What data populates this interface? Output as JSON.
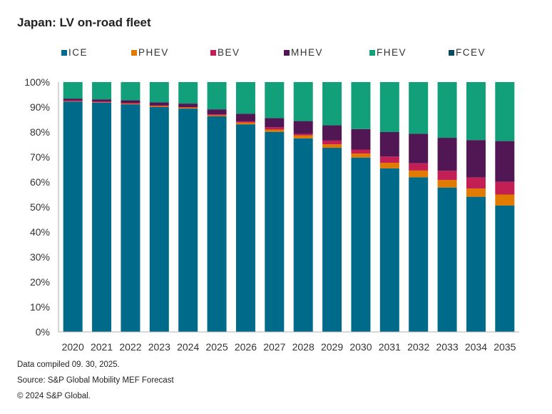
{
  "title": "Japan: LV on-road fleet",
  "footer": {
    "compiled": "Data compiled 09. 30, 2025.",
    "source": "Source: S&P Global Mobility MEF Forecast",
    "copyright": "© 2024 S&P Global."
  },
  "chart_data": {
    "type": "bar",
    "stacked": true,
    "title": "Japan: LV on-road fleet",
    "xlabel": "",
    "ylabel": "",
    "ylim": [
      0,
      100
    ],
    "y_ticks": [
      "0%",
      "10%",
      "20%",
      "30%",
      "40%",
      "50%",
      "60%",
      "70%",
      "80%",
      "90%",
      "100%"
    ],
    "grid": false,
    "legend_position": "top",
    "categories": [
      "2020",
      "2021",
      "2022",
      "2023",
      "2024",
      "2025",
      "2026",
      "2027",
      "2028",
      "2029",
      "2030",
      "2031",
      "2032",
      "2033",
      "2034",
      "2035"
    ],
    "series": [
      {
        "name": "ICE",
        "color": "#006a8a",
        "values": [
          92.2,
          91.8,
          91.1,
          90.0,
          89.4,
          86.3,
          83.1,
          80.1,
          77.5,
          73.7,
          69.8,
          65.5,
          61.9,
          57.8,
          54.1,
          50.6
        ]
      },
      {
        "name": "PHEV",
        "color": "#e07b00",
        "values": [
          0.1,
          0.1,
          0.2,
          0.4,
          0.4,
          0.4,
          0.7,
          0.9,
          1.2,
          1.4,
          1.6,
          2.2,
          2.7,
          3.0,
          3.3,
          4.4
        ]
      },
      {
        "name": "BEV",
        "color": "#c41f54",
        "values": [
          0.4,
          0.4,
          0.4,
          0.2,
          0.2,
          0.4,
          0.5,
          0.9,
          0.6,
          1.5,
          1.6,
          2.5,
          2.9,
          3.7,
          4.4,
          5.1
        ]
      },
      {
        "name": "MHEV",
        "color": "#511654",
        "values": [
          0.7,
          0.8,
          1.0,
          1.3,
          1.4,
          2.0,
          3.0,
          3.7,
          5.1,
          6.1,
          8.2,
          9.8,
          11.8,
          13.2,
          15.0,
          16.3
        ]
      },
      {
        "name": "FHEV",
        "color": "#12a07a",
        "values": [
          6.6,
          6.9,
          7.3,
          8.1,
          8.6,
          10.9,
          12.7,
          14.4,
          15.6,
          17.3,
          18.8,
          20.0,
          20.7,
          22.3,
          23.2,
          23.6
        ]
      },
      {
        "name": "FCEV",
        "color": "#0a4a63",
        "values": [
          0,
          0,
          0,
          0,
          0,
          0,
          0,
          0,
          0,
          0,
          0,
          0,
          0,
          0,
          0,
          0
        ]
      }
    ]
  }
}
